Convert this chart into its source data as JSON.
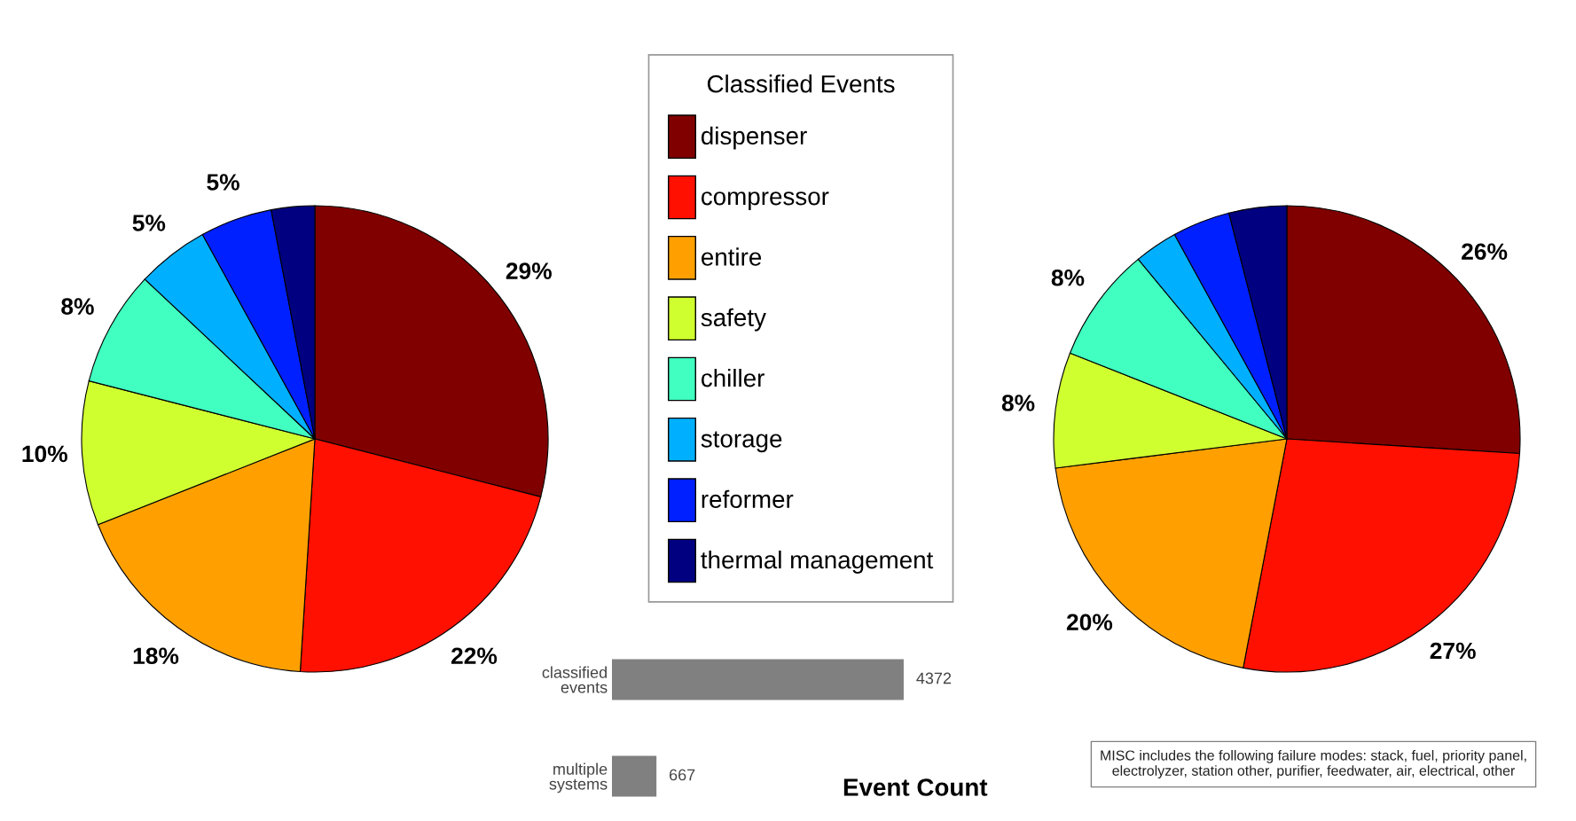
{
  "chart_data": [
    {
      "type": "pie",
      "legend": "right",
      "legend_title": "Classified Events",
      "categories": [
        "dispenser",
        "compressor",
        "entire",
        "safety",
        "chiller",
        "storage",
        "reformer",
        "thermal management"
      ],
      "values": [
        29,
        22,
        18,
        10,
        8,
        5,
        5,
        3
      ],
      "value_labels": [
        "29%",
        "22%",
        "18%",
        "10%",
        "8%",
        "5%",
        "5%",
        null
      ],
      "colors": [
        "#800000",
        "#ff1000",
        "#ffa000",
        "#d0ff30",
        "#40ffc0",
        "#00b0ff",
        "#0020ff",
        "#000080"
      ]
    },
    {
      "type": "pie",
      "categories": [
        null,
        null,
        null,
        null,
        null,
        null,
        null,
        null
      ],
      "values": [
        26,
        27,
        20,
        8,
        8,
        3,
        4,
        4
      ],
      "value_labels": [
        "26%",
        "27%",
        "20%",
        "8%",
        "8%",
        null,
        null,
        null
      ],
      "colors": [
        "#800000",
        "#ff1000",
        "#ffa000",
        "#d0ff30",
        "#40ffc0",
        "#00b0ff",
        "#0020ff",
        "#000080"
      ]
    },
    {
      "type": "bar",
      "orientation": "horizontal",
      "title": "Event Count",
      "categories": [
        "classified events",
        "multiple systems"
      ],
      "values": [
        4372,
        667
      ],
      "color": "#808080",
      "data_labels": true,
      "annotations": [
        "MISC includes the following failure modes: stack, fuel, priority panel,\nelectrolyzer, station other, purifier, feedwater, air, electrical, other"
      ]
    }
  ]
}
